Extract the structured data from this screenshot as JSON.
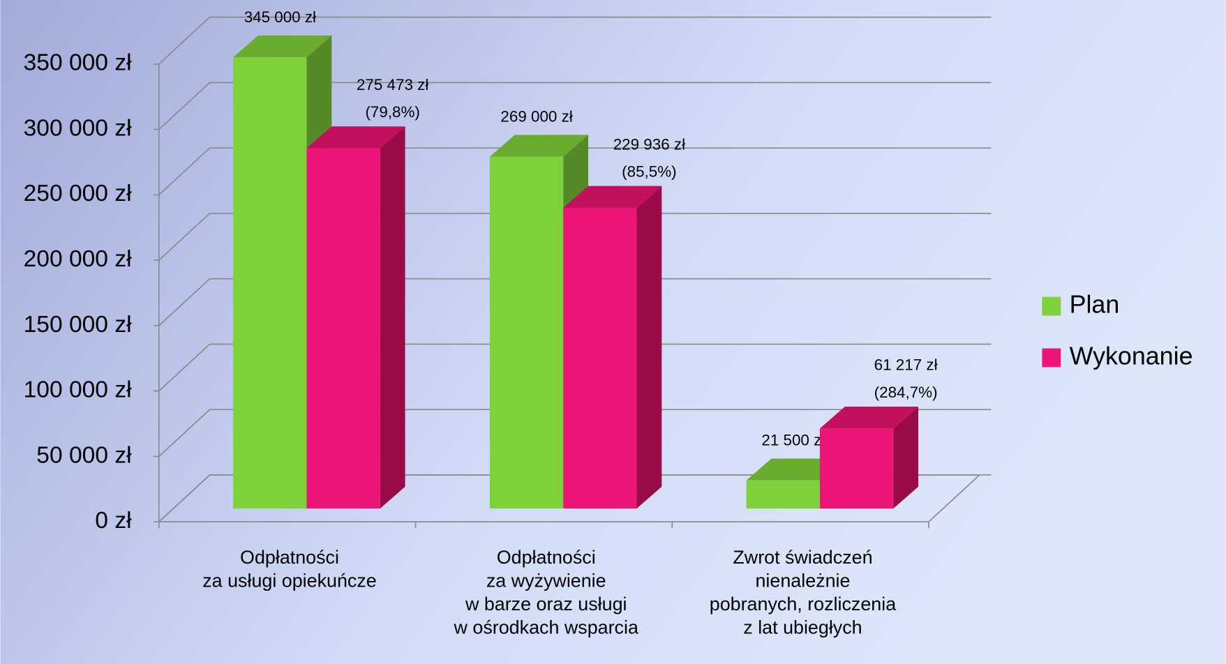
{
  "chart_data": {
    "type": "bar3d",
    "categories": [
      "Odpłatności\nza usługi opiekuńcze",
      "Odpłatności\nza wyżywienie\nw barze oraz usługi\nw ośrodkach wsparcia",
      "Zwrot świadczeń\nnienależnie\npobranych, rozliczenia\nz lat ubiegłych"
    ],
    "series": [
      {
        "name": "Plan",
        "color": "#7ed13b",
        "values": [
          345000,
          269000,
          21500
        ],
        "value_labels": [
          "345 000 zł",
          "269 000 zł",
          "21 500 zł"
        ]
      },
      {
        "name": "Wykonanie",
        "color": "#ec1679",
        "values": [
          275473,
          229936,
          61217
        ],
        "value_labels": [
          "275 473 zł",
          "229 936 zł",
          "61 217 zł"
        ],
        "percent_labels": [
          "(79,8%)",
          "(85,5%)",
          "(284,7%)"
        ]
      }
    ],
    "ylim": [
      0,
      350000
    ],
    "yticks": [
      {
        "value": 0,
        "label": "0 zł"
      },
      {
        "value": 50000,
        "label": "50 000 zł"
      },
      {
        "value": 100000,
        "label": "100 000 zł"
      },
      {
        "value": 150000,
        "label": "150 000 zł"
      },
      {
        "value": 200000,
        "label": "200 000 zł"
      },
      {
        "value": 250000,
        "label": "250 000 zł"
      },
      {
        "value": 300000,
        "label": "300 000 zł"
      },
      {
        "value": 350000,
        "label": "350 000 zł"
      }
    ],
    "grid": true,
    "legend": "right"
  }
}
